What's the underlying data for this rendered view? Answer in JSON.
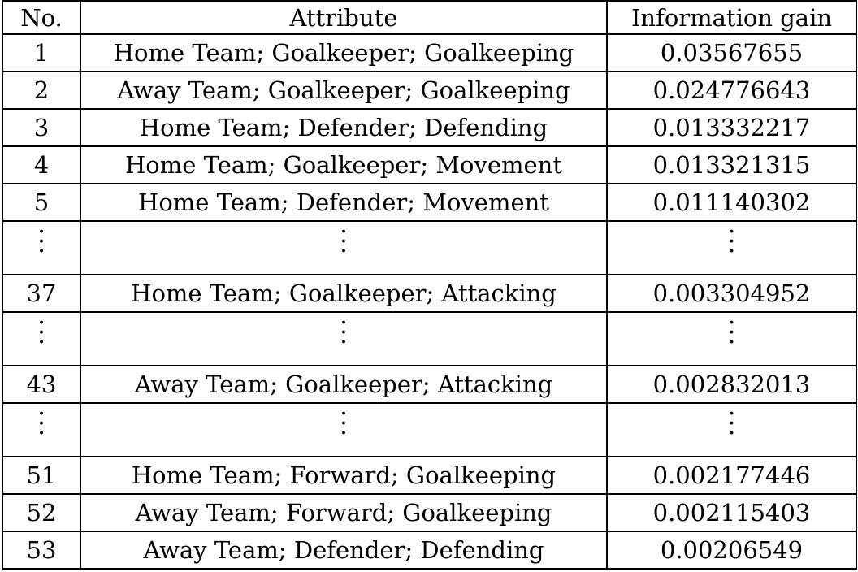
{
  "table": {
    "headers": {
      "no": "No.",
      "attribute": "Attribute",
      "gain": "Information gain"
    },
    "rows": [
      {
        "type": "data",
        "no": "1",
        "attribute": "Home Team; Goalkeeper; Goalkeeping",
        "gain": "0.03567655"
      },
      {
        "type": "data",
        "no": "2",
        "attribute": "Away Team; Goalkeeper; Goalkeeping",
        "gain": "0.024776643"
      },
      {
        "type": "data",
        "no": "3",
        "attribute": "Home Team; Defender; Defending",
        "gain": "0.013332217"
      },
      {
        "type": "data",
        "no": "4",
        "attribute": "Home Team; Goalkeeper; Movement",
        "gain": "0.013321315"
      },
      {
        "type": "data",
        "no": "5",
        "attribute": "Home Team; Defender; Movement",
        "gain": "0.011140302"
      },
      {
        "type": "ellipsis"
      },
      {
        "type": "data",
        "no": "37",
        "attribute": "Home Team; Goalkeeper; Attacking",
        "gain": "0.003304952"
      },
      {
        "type": "ellipsis"
      },
      {
        "type": "data",
        "no": "43",
        "attribute": "Away Team; Goalkeeper; Attacking",
        "gain": "0.002832013"
      },
      {
        "type": "ellipsis"
      },
      {
        "type": "data",
        "no": "51",
        "attribute": "Home Team; Forward; Goalkeeping",
        "gain": "0.002177446"
      },
      {
        "type": "data",
        "no": "52",
        "attribute": "Away Team; Forward; Goalkeeping",
        "gain": "0.002115403"
      },
      {
        "type": "data",
        "no": "53",
        "attribute": "Away Team; Defender; Defending",
        "gain": "0.00206549"
      }
    ]
  }
}
